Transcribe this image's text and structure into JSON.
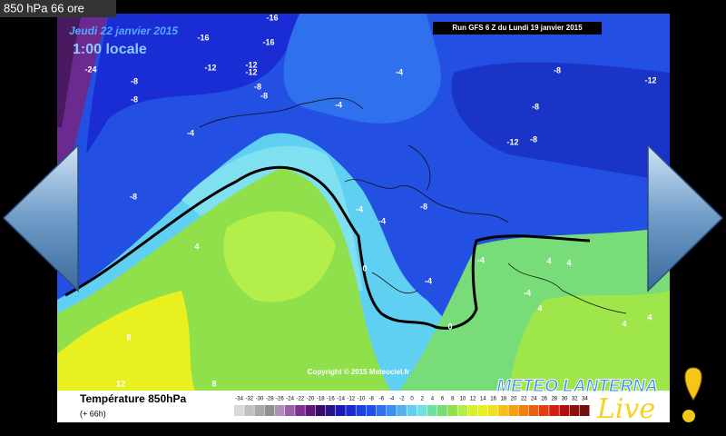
{
  "header": {
    "title": "850 hPa 66 ore"
  },
  "map": {
    "date": "Jeudi 22 janvier 2015",
    "local_time": "1:00 locale",
    "run": "Run GFS 6 Z du Lundi 19 janvier 2015",
    "copyright": "Copyright © 2015 Meteociel.fr",
    "contour_labels": [
      "-24",
      "-16",
      "-16",
      "-16",
      "-12",
      "-12",
      "-12",
      "-8",
      "-8",
      "-8",
      "-8",
      "-4",
      "-12",
      "-8",
      "-8",
      "-12",
      "-8",
      "-4",
      "-8",
      "-4",
      "-4",
      "-8",
      "-4",
      "0",
      "-4",
      "-4",
      "4",
      "4",
      "-4",
      "0",
      "4",
      "4",
      "4",
      "4",
      "8",
      "12",
      "8"
    ]
  },
  "legend": {
    "title": "Température 850hPa",
    "subtitle": "(+ 66h)",
    "scale": [
      "-34",
      "-32",
      "-30",
      "-28",
      "-26",
      "-24",
      "-22",
      "-20",
      "-18",
      "-16",
      "-14",
      "-12",
      "-10",
      "-8",
      "-6",
      "-4",
      "-2",
      "0",
      "2",
      "4",
      "6",
      "8",
      "10",
      "12",
      "14",
      "16",
      "18",
      "20",
      "22",
      "24",
      "26",
      "28",
      "30",
      "32",
      "34"
    ]
  },
  "logo": {
    "name": "METEO LANTERNA",
    "tag": "Live"
  }
}
